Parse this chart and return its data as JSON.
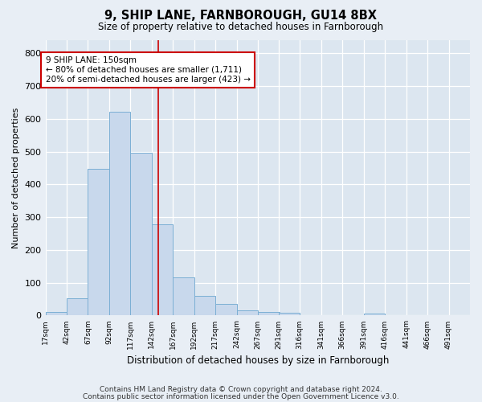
{
  "title1": "9, SHIP LANE, FARNBOROUGH, GU14 8BX",
  "title2": "Size of property relative to detached houses in Farnborough",
  "xlabel": "Distribution of detached houses by size in Farnborough",
  "ylabel": "Number of detached properties",
  "bar_color": "#c8d8ec",
  "bar_edge_color": "#7bafd4",
  "background_color": "#dce6f0",
  "fig_color": "#e8eef5",
  "grid_color": "#ffffff",
  "vline_color": "#cc0000",
  "vline_x": 150,
  "annotation_text": "9 SHIP LANE: 150sqm\n← 80% of detached houses are smaller (1,711)\n20% of semi-detached houses are larger (423) →",
  "annotation_box_color": "#ffffff",
  "annotation_box_edge": "#cc0000",
  "bins": [
    17,
    42,
    67,
    92,
    117,
    142,
    167,
    192,
    217,
    242,
    267,
    291,
    316,
    341,
    366,
    391,
    416,
    441,
    466,
    491,
    516
  ],
  "values": [
    10,
    52,
    447,
    622,
    497,
    278,
    116,
    61,
    35,
    17,
    10,
    8,
    0,
    0,
    0,
    7,
    0,
    0,
    0,
    0
  ],
  "ylim": [
    0,
    840
  ],
  "yticks": [
    0,
    100,
    200,
    300,
    400,
    500,
    600,
    700,
    800
  ],
  "footnote1": "Contains HM Land Registry data © Crown copyright and database right 2024.",
  "footnote2": "Contains public sector information licensed under the Open Government Licence v3.0."
}
